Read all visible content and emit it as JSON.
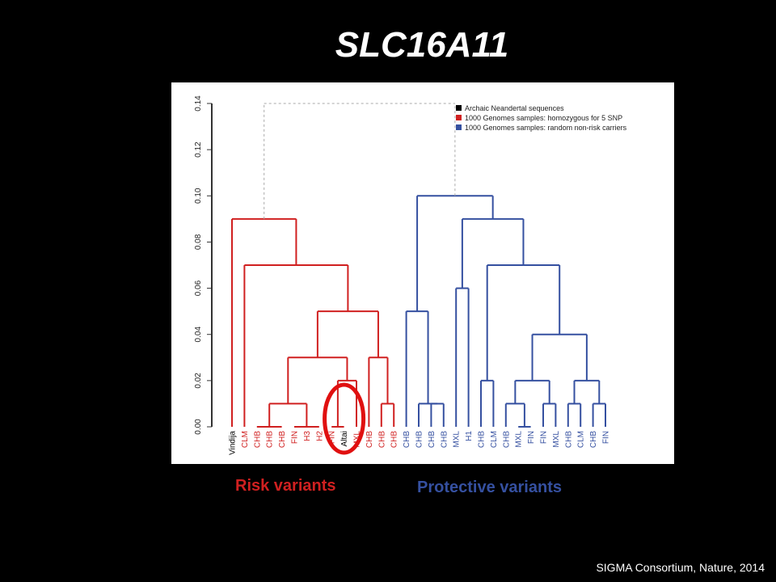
{
  "slide": {
    "title": "SLC16A11",
    "captions": {
      "risk": "Risk variants",
      "protective": "Protective variants"
    },
    "citation": "SIGMA Consortium, Nature, 2014"
  },
  "colors": {
    "background": "#000000",
    "archaic": "#000000",
    "risk": "#d02020",
    "protective": "#3550a0",
    "connector": "#aaaaaa",
    "highlight_circle": "#e01010"
  },
  "chart_data": {
    "type": "dendrogram",
    "ylim": [
      0,
      0.14
    ],
    "yticks": [
      "0.00",
      "0.02",
      "0.04",
      "0.06",
      "0.08",
      "0.10",
      "0.12",
      "0.14"
    ],
    "legend": {
      "placement": "top-right",
      "entries": [
        {
          "label": "Archaic Neandertal sequences",
          "group": "archaic"
        },
        {
          "label": "1000 Genomes samples: homozygous for 5 SNP",
          "group": "risk"
        },
        {
          "label": "1000 Genomes samples: random non-risk carriers",
          "group": "protective"
        }
      ]
    },
    "leaves": [
      {
        "label": "Vindija",
        "group": "archaic"
      },
      {
        "label": "CLM",
        "group": "risk"
      },
      {
        "label": "CHB",
        "group": "risk"
      },
      {
        "label": "CHB",
        "group": "risk"
      },
      {
        "label": "CHB",
        "group": "risk"
      },
      {
        "label": "FIN",
        "group": "risk"
      },
      {
        "label": "H3",
        "group": "risk"
      },
      {
        "label": "H2",
        "group": "risk"
      },
      {
        "label": "FIN",
        "group": "risk"
      },
      {
        "label": "Altai",
        "group": "archaic"
      },
      {
        "label": "MXL",
        "group": "risk"
      },
      {
        "label": "CHB",
        "group": "risk"
      },
      {
        "label": "CHB",
        "group": "risk"
      },
      {
        "label": "CHB",
        "group": "risk"
      },
      {
        "label": "CHB",
        "group": "protective"
      },
      {
        "label": "CHB",
        "group": "protective"
      },
      {
        "label": "CHB",
        "group": "protective"
      },
      {
        "label": "CHB",
        "group": "protective"
      },
      {
        "label": "MXL",
        "group": "protective"
      },
      {
        "label": "H1",
        "group": "protective"
      },
      {
        "label": "CHB",
        "group": "protective"
      },
      {
        "label": "CLM",
        "group": "protective"
      },
      {
        "label": "CHB",
        "group": "protective"
      },
      {
        "label": "MXL",
        "group": "protective"
      },
      {
        "label": "FIN",
        "group": "protective"
      },
      {
        "label": "FIN",
        "group": "protective"
      },
      {
        "label": "MXL",
        "group": "protective"
      },
      {
        "label": "CHB",
        "group": "protective"
      },
      {
        "label": "CLM",
        "group": "protective"
      },
      {
        "label": "CHB",
        "group": "protective"
      },
      {
        "label": "FIN",
        "group": "protective"
      }
    ],
    "tree": {
      "h": 0.14,
      "group": "connector",
      "children": [
        {
          "h": 0.09,
          "group": "risk",
          "children": [
            {
              "leaf": 0
            },
            {
              "h": 0.07,
              "group": "risk",
              "children": [
                {
                  "leaf": 1
                },
                {
                  "h": 0.05,
                  "group": "risk",
                  "children": [
                    {
                      "h": 0.03,
                      "group": "risk",
                      "children": [
                        {
                          "h": 0.01,
                          "group": "risk",
                          "children": [
                            {
                              "h": 0.0,
                              "group": "risk",
                              "children": [
                                {
                                  "leaf": 2
                                },
                                {
                                  "leaf": 3
                                },
                                {
                                  "leaf": 4
                                }
                              ]
                            },
                            {
                              "h": 0.0,
                              "group": "risk",
                              "children": [
                                {
                                  "leaf": 5
                                },
                                {
                                  "leaf": 6
                                },
                                {
                                  "leaf": 7
                                }
                              ]
                            }
                          ]
                        },
                        {
                          "h": 0.02,
                          "group": "risk",
                          "children": [
                            {
                              "h": 0.0,
                              "group": "risk",
                              "children": [
                                {
                                  "leaf": 8
                                },
                                {
                                  "leaf": 9
                                }
                              ]
                            },
                            {
                              "leaf": 10
                            }
                          ]
                        }
                      ]
                    },
                    {
                      "h": 0.03,
                      "group": "risk",
                      "children": [
                        {
                          "leaf": 11
                        },
                        {
                          "h": 0.01,
                          "group": "risk",
                          "children": [
                            {
                              "leaf": 12
                            },
                            {
                              "leaf": 13
                            }
                          ]
                        }
                      ]
                    }
                  ]
                }
              ]
            }
          ]
        },
        {
          "h": 0.1,
          "group": "protective",
          "children": [
            {
              "h": 0.05,
              "group": "protective",
              "children": [
                {
                  "leaf": 14
                },
                {
                  "h": 0.01,
                  "group": "protective",
                  "children": [
                    {
                      "leaf": 15
                    },
                    {
                      "h": 0.01,
                      "group": "protective",
                      "children": [
                        {
                          "leaf": 16
                        },
                        {
                          "leaf": 17
                        }
                      ]
                    }
                  ]
                }
              ]
            },
            {
              "h": 0.09,
              "group": "protective",
              "children": [
                {
                  "h": 0.06,
                  "group": "protective",
                  "children": [
                    {
                      "leaf": 18
                    },
                    {
                      "leaf": 19
                    }
                  ]
                },
                {
                  "h": 0.07,
                  "group": "protective",
                  "children": [
                    {
                      "h": 0.02,
                      "group": "protective",
                      "children": [
                        {
                          "leaf": 20
                        },
                        {
                          "leaf": 21
                        }
                      ]
                    },
                    {
                      "h": 0.04,
                      "group": "protective",
                      "children": [
                        {
                          "h": 0.02,
                          "group": "protective",
                          "children": [
                            {
                              "h": 0.01,
                              "group": "protective",
                              "children": [
                                {
                                  "leaf": 22
                                },
                                {
                                  "h": 0.0,
                                  "group": "protective",
                                  "children": [
                                    {
                                      "leaf": 23
                                    },
                                    {
                                      "leaf": 24
                                    }
                                  ]
                                }
                              ]
                            },
                            {
                              "h": 0.01,
                              "group": "protective",
                              "children": [
                                {
                                  "leaf": 25
                                },
                                {
                                  "leaf": 26
                                }
                              ]
                            }
                          ]
                        },
                        {
                          "h": 0.02,
                          "group": "protective",
                          "children": [
                            {
                              "h": 0.01,
                              "group": "protective",
                              "children": [
                                {
                                  "leaf": 27
                                },
                                {
                                  "leaf": 28
                                }
                              ]
                            },
                            {
                              "h": 0.01,
                              "group": "protective",
                              "children": [
                                {
                                  "leaf": 29
                                },
                                {
                                  "leaf": 30
                                }
                              ]
                            }
                          ]
                        }
                      ]
                    }
                  ]
                }
              ]
            }
          ]
        }
      ]
    },
    "highlight": {
      "leaves": [
        8,
        9,
        10
      ],
      "shape": "circle"
    }
  }
}
